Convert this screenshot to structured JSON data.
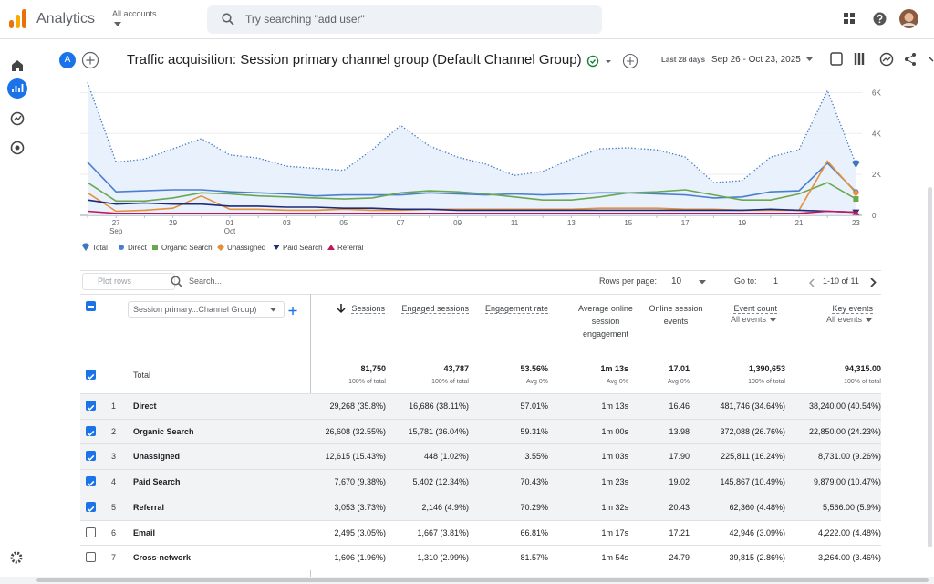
{
  "header": {
    "app": "Analytics",
    "account_label": "All accounts",
    "search_placeholder": "Try searching \"add user\""
  },
  "report": {
    "avatar": "A",
    "title": "Traffic acquisition: Session primary channel group (Default Channel Group)",
    "date_label": "Last 28 days",
    "date_range": "Sep 26 - Oct 23, 2025"
  },
  "chart_data": {
    "type": "line",
    "categories": [
      null,
      "27",
      null,
      "29",
      null,
      "01",
      null,
      "03",
      null,
      "05",
      null,
      "07",
      null,
      "09",
      null,
      "11",
      null,
      "13",
      null,
      "15",
      null,
      "17",
      null,
      "19",
      null,
      "21",
      null,
      "23"
    ],
    "category_months": [
      null,
      "Sep",
      null,
      null,
      null,
      "Oct",
      null,
      null,
      null,
      null,
      null,
      null,
      null,
      null,
      null,
      null,
      null,
      null,
      null,
      null,
      null,
      null,
      null,
      null,
      null,
      null,
      null,
      null
    ],
    "ylim": [
      0,
      6600
    ],
    "yticks": [
      0,
      {
        "value": 2000,
        "label": "2K"
      },
      {
        "value": 4000,
        "label": "4K"
      },
      {
        "value": 6000,
        "label": "6K"
      }
    ],
    "grid": true,
    "series": [
      {
        "name": "Total",
        "color": "#3f76c0",
        "values": [
          6500,
          2600,
          2750,
          3250,
          3750,
          2950,
          2800,
          2400,
          2300,
          2200,
          3200,
          4400,
          3400,
          2850,
          2500,
          1950,
          2150,
          2750,
          3250,
          3300,
          3200,
          2850,
          1600,
          1700,
          2850,
          3200,
          6100,
          2500
        ]
      },
      {
        "name": "Direct",
        "color": "#4a7fd0",
        "values": [
          2600,
          1150,
          1200,
          1250,
          1250,
          1150,
          1100,
          1050,
          950,
          1000,
          1000,
          1000,
          1100,
          1050,
          1000,
          1050,
          1000,
          1050,
          1100,
          1100,
          1050,
          1000,
          850,
          900,
          1150,
          1200,
          2550,
          1150
        ]
      },
      {
        "name": "Organic Search",
        "color": "#6aa84f",
        "values": [
          1600,
          700,
          700,
          850,
          1100,
          1050,
          950,
          900,
          850,
          800,
          850,
          1100,
          1200,
          1150,
          1050,
          900,
          750,
          750,
          900,
          1100,
          1150,
          1250,
          1000,
          750,
          750,
          1050,
          1600,
          800
        ]
      },
      {
        "name": "Unassigned",
        "color": "#e69138",
        "values": [
          1100,
          200,
          250,
          350,
          950,
          300,
          300,
          250,
          250,
          300,
          250,
          250,
          300,
          300,
          300,
          300,
          300,
          300,
          350,
          350,
          350,
          300,
          300,
          250,
          250,
          250,
          2650,
          1100
        ]
      },
      {
        "name": "Paid Search",
        "color": "#1f2a7a",
        "values": [
          750,
          550,
          600,
          550,
          550,
          450,
          450,
          400,
          400,
          350,
          350,
          300,
          300,
          250,
          250,
          250,
          250,
          250,
          250,
          250,
          250,
          250,
          250,
          250,
          300,
          250,
          200,
          150
        ]
      },
      {
        "name": "Referral",
        "color": "#c2185b",
        "values": [
          200,
          100,
          100,
          100,
          100,
          100,
          100,
          100,
          100,
          100,
          100,
          100,
          100,
          100,
          100,
          100,
          100,
          100,
          100,
          100,
          100,
          100,
          100,
          100,
          100,
          100,
          200,
          150
        ]
      }
    ]
  },
  "table": {
    "plot_rows": "Plot rows",
    "search": "Search...",
    "rows_per_page": "Rows per page:",
    "rows_value": 10,
    "goto": "Go to:",
    "goto_value": 1,
    "pagination": "1-10 of 11",
    "dimension": "Session primary...Channel Group)",
    "columns": [
      {
        "label": "Sessions",
        "sub": null
      },
      {
        "label": "Engaged sessions",
        "sub": null
      },
      {
        "label": "Engagement rate",
        "sub": null
      },
      {
        "label": "Average online session engagement",
        "sub": null
      },
      {
        "label": "Online session events",
        "sub": null
      },
      {
        "label": "Event count",
        "sub": "All events"
      },
      {
        "label": "Key events",
        "sub": "All events"
      }
    ],
    "total": {
      "label": "Total",
      "checked": true,
      "values": [
        "81,750",
        "43,787",
        "53.56%",
        "1m 13s",
        "17.01",
        "1,390,653",
        "94,315.00"
      ],
      "subs": [
        "100% of total",
        "100% of total",
        "Avg 0%",
        "Avg 0%",
        "Avg 0%",
        "100% of total",
        "100% of total"
      ]
    },
    "rows": [
      {
        "rank": 1,
        "name": "Direct",
        "checked": true,
        "cells": [
          "29,268 (35.8%)",
          "16,686 (38.11%)",
          "57.01%",
          "1m 13s",
          "16.46",
          "481,746 (34.64%)",
          "38,240.00 (40.54%)"
        ]
      },
      {
        "rank": 2,
        "name": "Organic Search",
        "checked": true,
        "cells": [
          "26,608 (32.55%)",
          "15,781 (36.04%)",
          "59.31%",
          "1m 00s",
          "13.98",
          "372,088 (26.76%)",
          "22,850.00 (24.23%)"
        ]
      },
      {
        "rank": 3,
        "name": "Unassigned",
        "checked": true,
        "cells": [
          "12,615 (15.43%)",
          "448 (1.02%)",
          "3.55%",
          "1m 03s",
          "17.90",
          "225,811 (16.24%)",
          "8,731.00 (9.26%)"
        ]
      },
      {
        "rank": 4,
        "name": "Paid Search",
        "checked": true,
        "cells": [
          "7,670 (9.38%)",
          "5,402 (12.34%)",
          "70.43%",
          "1m 23s",
          "19.02",
          "145,867 (10.49%)",
          "9,879.00 (10.47%)"
        ]
      },
      {
        "rank": 5,
        "name": "Referral",
        "checked": true,
        "cells": [
          "3,053 (3.73%)",
          "2,146 (4.9%)",
          "70.29%",
          "1m 32s",
          "20.43",
          "62,360 (4.48%)",
          "5,566.00 (5.9%)"
        ]
      },
      {
        "rank": 6,
        "name": "Email",
        "checked": false,
        "cells": [
          "2,495 (3.05%)",
          "1,667 (3.81%)",
          "66.81%",
          "1m 17s",
          "17.21",
          "42,946 (3.09%)",
          "4,222.00 (4.48%)"
        ]
      },
      {
        "rank": 7,
        "name": "Cross-network",
        "checked": false,
        "cells": [
          "1,606 (1.96%)",
          "1,310 (2.99%)",
          "81.57%",
          "1m 54s",
          "24.79",
          "39,815 (2.86%)",
          "3,264.00 (3.46%)"
        ]
      }
    ]
  }
}
